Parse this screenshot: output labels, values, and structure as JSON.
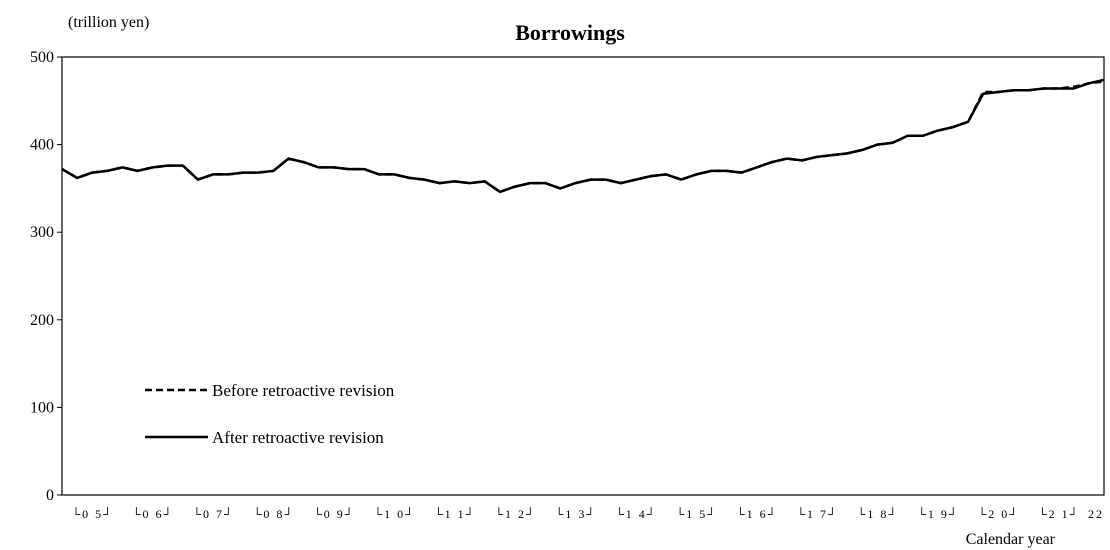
{
  "chart_data": {
    "type": "line",
    "title": "Borrowings",
    "unit_label": "(trillion  yen)",
    "xlabel": "Calendar year",
    "ylabel": "",
    "ylim": [
      0,
      500
    ],
    "yticks": [
      0,
      100,
      200,
      300,
      400,
      500
    ],
    "x_tick_labels": [
      "└0 5┘",
      "└0 6┘",
      "└0 7┘",
      "└0 8┘",
      "└0 9┘",
      "└1 0┘",
      "└1 1┘",
      "└1 2┘",
      "└1 3┘",
      "└1 4┘",
      "└1 5┘",
      "└1 6┘",
      "└1 7┘",
      "└1 8┘",
      "└1 9┘",
      "└2 0┘",
      "└2 1┘",
      "22"
    ],
    "x_period": "quarterly, 2005 Q1 to 2022 Q2",
    "legend_position": "lower-left",
    "grid": false,
    "series": [
      {
        "name": "Before retroactive revision",
        "style": "dashed",
        "color": "#000000",
        "values": [
          372,
          362,
          368,
          370,
          374,
          370,
          374,
          376,
          376,
          360,
          366,
          366,
          368,
          368,
          370,
          384,
          380,
          374,
          374,
          372,
          372,
          366,
          366,
          362,
          360,
          356,
          358,
          356,
          358,
          346,
          352,
          356,
          356,
          350,
          356,
          360,
          360,
          356,
          360,
          364,
          366,
          360,
          366,
          370,
          370,
          368,
          374,
          380,
          384,
          382,
          386,
          388,
          390,
          394,
          400,
          402,
          410,
          410,
          416,
          420,
          426,
          460,
          460,
          462,
          462,
          464,
          464,
          466,
          470,
          472
        ]
      },
      {
        "name": "After retroactive revision",
        "style": "solid",
        "color": "#000000",
        "values": [
          372,
          362,
          368,
          370,
          374,
          370,
          374,
          376,
          376,
          360,
          366,
          366,
          368,
          368,
          370,
          384,
          380,
          374,
          374,
          372,
          372,
          366,
          366,
          362,
          360,
          356,
          358,
          356,
          358,
          346,
          352,
          356,
          356,
          350,
          356,
          360,
          360,
          356,
          360,
          364,
          366,
          360,
          366,
          370,
          370,
          368,
          374,
          380,
          384,
          382,
          386,
          388,
          390,
          394,
          400,
          402,
          410,
          410,
          416,
          420,
          426,
          458,
          460,
          462,
          462,
          464,
          464,
          464,
          470,
          474
        ]
      }
    ]
  }
}
